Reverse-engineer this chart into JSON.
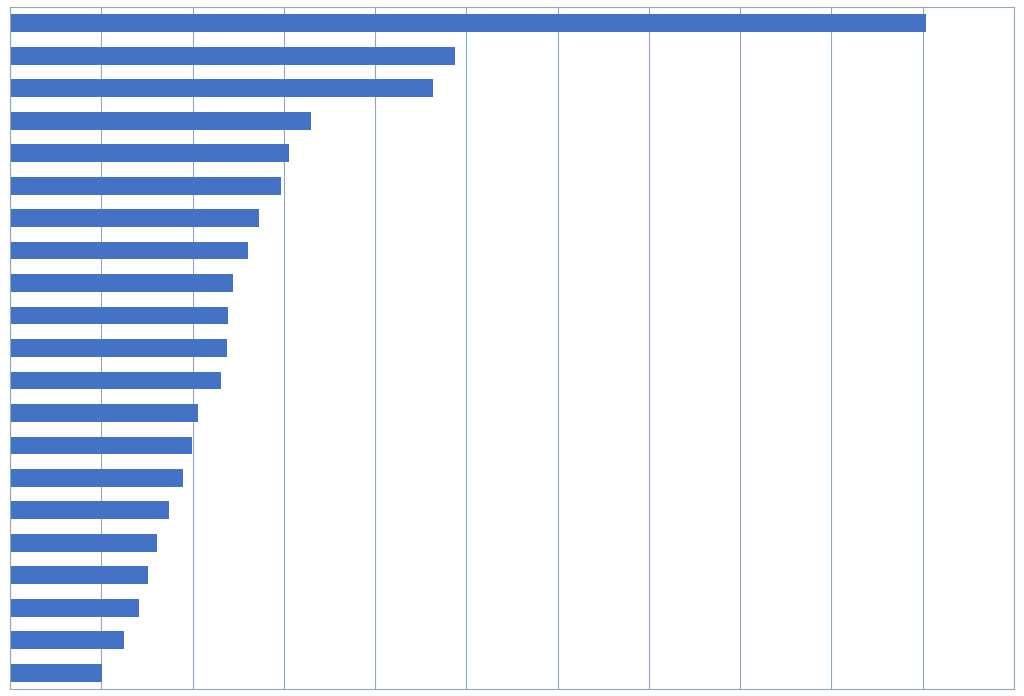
{
  "values": [
    10.5,
    5.1,
    4.85,
    3.45,
    3.2,
    3.1,
    2.85,
    2.72,
    2.55,
    2.5,
    2.48,
    2.42,
    2.15,
    2.08,
    1.98,
    1.82,
    1.68,
    1.58,
    1.48,
    1.3,
    1.05
  ],
  "bar_color": "#4472C4",
  "background_color": "#FFFFFF",
  "grid_color": "#8EA9C1",
  "xlim": [
    0,
    11.5
  ],
  "num_gridlines": 11,
  "bar_height": 0.55
}
